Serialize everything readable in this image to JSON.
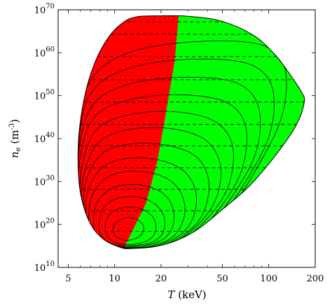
{
  "chart_data": {
    "type": "area",
    "xlabel": "T (keV)",
    "ylabel": "n_e (m^-3)",
    "x_scale": "log",
    "y_scale": "log",
    "xlim": [
      4.3,
      200
    ],
    "ylim": [
      10000000000.0,
      1e+70
    ],
    "x_ticks": [
      {
        "value": 5,
        "label": "5"
      },
      {
        "value": 10,
        "label": "10"
      },
      {
        "value": 20,
        "label": "20"
      },
      {
        "value": 50,
        "label": "50"
      },
      {
        "value": 100,
        "label": "100"
      },
      {
        "value": 200,
        "label": "200"
      }
    ],
    "y_ticks": [
      {
        "exp": 10,
        "label": "10",
        "base": "10"
      },
      {
        "exp": 20,
        "label": "20",
        "base": "10"
      },
      {
        "exp": 30,
        "label": "30",
        "base": "10"
      },
      {
        "exp": 40,
        "label": "40",
        "base": "10"
      },
      {
        "exp": 50,
        "label": "50",
        "base": "10"
      },
      {
        "exp": 60,
        "label": "60",
        "base": "10"
      },
      {
        "exp": 70,
        "label": "70",
        "base": "10"
      }
    ],
    "region_colors": {
      "red": "#ff0000",
      "green": "#00ff00"
    },
    "region_boundary": [
      [
        11.5,
        14.5
      ],
      [
        16,
        25
      ],
      [
        19,
        35
      ],
      [
        22,
        48
      ],
      [
        24.5,
        58
      ],
      [
        26,
        68.5
      ]
    ],
    "outline": [
      [
        11,
        14.6
      ],
      [
        8.5,
        16.5
      ],
      [
        7,
        20
      ],
      [
        6.1,
        26
      ],
      [
        5.8,
        33
      ],
      [
        5.9,
        42
      ],
      [
        6.5,
        51
      ],
      [
        7.6,
        58.5
      ],
      [
        9.3,
        64
      ],
      [
        11.5,
        67.2
      ],
      [
        14,
        68.4
      ],
      [
        19,
        68.6
      ],
      [
        30,
        68.5
      ],
      [
        50,
        67.3
      ],
      [
        80,
        64
      ],
      [
        110,
        59.5
      ],
      [
        140,
        54.5
      ],
      [
        162,
        51
      ],
      [
        170,
        48.5
      ],
      [
        150,
        43
      ],
      [
        110,
        36
      ],
      [
        75,
        29
      ],
      [
        50,
        23.5
      ],
      [
        35,
        19
      ],
      [
        25,
        16.2
      ],
      [
        18,
        14.8
      ],
      [
        13,
        14.4
      ],
      [
        11,
        14.6
      ]
    ],
    "contours": [
      {
        "level": 1,
        "outline": [
          [
            11.3,
            16.4
          ],
          [
            10,
            17.5
          ],
          [
            9.8,
            19.5
          ],
          [
            10.8,
            21
          ],
          [
            12.5,
            21.6
          ],
          [
            14.5,
            20.8
          ],
          [
            15.5,
            19.1
          ],
          [
            14.6,
            17.3
          ],
          [
            12.8,
            16.4
          ],
          [
            11.3,
            16.4
          ]
        ]
      },
      {
        "level": 2,
        "outline": [
          [
            10.6,
            15.6
          ],
          [
            9.1,
            17
          ],
          [
            8.7,
            20
          ],
          [
            9.6,
            22.8
          ],
          [
            11.8,
            24
          ],
          [
            15,
            23.6
          ],
          [
            17.8,
            21.6
          ],
          [
            18.5,
            18.8
          ],
          [
            16.8,
            16.5
          ],
          [
            13.5,
            15.4
          ],
          [
            10.6,
            15.6
          ]
        ]
      },
      {
        "level": 3,
        "outline": [
          [
            10.2,
            15.3
          ],
          [
            8.4,
            16.8
          ],
          [
            7.9,
            20
          ],
          [
            8.6,
            24.2
          ],
          [
            10.8,
            26.2
          ],
          [
            14.5,
            26.3
          ],
          [
            18.5,
            24.6
          ],
          [
            21,
            21.5
          ],
          [
            20.5,
            18
          ],
          [
            17.5,
            15.9
          ],
          [
            13.5,
            15.1
          ],
          [
            10.2,
            15.3
          ]
        ]
      },
      {
        "level": 4,
        "outline": [
          [
            9.8,
            15.1
          ],
          [
            7.9,
            16.8
          ],
          [
            7.3,
            20.5
          ],
          [
            7.8,
            25.5
          ],
          [
            9.9,
            28.6
          ],
          [
            14,
            29.3
          ],
          [
            19.5,
            27.8
          ],
          [
            23.5,
            24.5
          ],
          [
            24,
            20
          ],
          [
            20.5,
            16.5
          ],
          [
            14.5,
            14.9
          ],
          [
            9.8,
            15.1
          ]
        ]
      },
      {
        "level": 5,
        "outline": [
          [
            9.4,
            15
          ],
          [
            7.4,
            17
          ],
          [
            6.8,
            21
          ],
          [
            7.2,
            27
          ],
          [
            9.2,
            31.2
          ],
          [
            13.5,
            32.4
          ],
          [
            20.5,
            31.2
          ],
          [
            26.5,
            27.8
          ],
          [
            28.5,
            22.5
          ],
          [
            24,
            17.2
          ],
          [
            16,
            14.8
          ],
          [
            9.4,
            15
          ]
        ]
      },
      {
        "level": 6,
        "outline": [
          [
            9.1,
            14.9
          ],
          [
            7.1,
            17.1
          ],
          [
            6.5,
            21.5
          ],
          [
            6.8,
            28.5
          ],
          [
            8.7,
            33.8
          ],
          [
            13.2,
            35.5
          ],
          [
            21.5,
            34.6
          ],
          [
            30,
            31.4
          ],
          [
            34,
            25.5
          ],
          [
            29,
            18.8
          ],
          [
            18,
            14.9
          ],
          [
            9.1,
            14.9
          ]
        ]
      },
      {
        "level": 7,
        "outline": [
          [
            8.9,
            14.8
          ],
          [
            6.8,
            17.3
          ],
          [
            6.3,
            22
          ],
          [
            6.5,
            30
          ],
          [
            8.3,
            36.5
          ],
          [
            13,
            38.8
          ],
          [
            23,
            38.3
          ],
          [
            35,
            35.3
          ],
          [
            41,
            28.8
          ],
          [
            34.5,
            20.5
          ],
          [
            20,
            15.1
          ],
          [
            8.9,
            14.8
          ]
        ]
      },
      {
        "level": 8,
        "outline": [
          [
            8.7,
            14.8
          ],
          [
            6.6,
            17.5
          ],
          [
            6.1,
            22.5
          ],
          [
            6.3,
            31.5
          ],
          [
            7.9,
            39.2
          ],
          [
            12.8,
            42.2
          ],
          [
            24.5,
            42.2
          ],
          [
            40,
            39.3
          ],
          [
            49,
            32.5
          ],
          [
            41,
            23
          ],
          [
            22,
            15.2
          ],
          [
            8.7,
            14.8
          ]
        ]
      },
      {
        "level": 9,
        "outline": [
          [
            8.5,
            14.7
          ],
          [
            6.4,
            17.6
          ],
          [
            6,
            23
          ],
          [
            6.1,
            33
          ],
          [
            7.6,
            42
          ],
          [
            12.6,
            45.6
          ],
          [
            26,
            46.2
          ],
          [
            47,
            43.5
          ],
          [
            59,
            36.5
          ],
          [
            49,
            25.5
          ],
          [
            24,
            15.4
          ],
          [
            8.5,
            14.7
          ]
        ]
      },
      {
        "level": 10,
        "outline": [
          [
            8.3,
            14.7
          ],
          [
            6.3,
            17.8
          ],
          [
            5.9,
            23.5
          ],
          [
            5.9,
            34.5
          ],
          [
            7.3,
            44.8
          ],
          [
            12.4,
            49
          ],
          [
            28,
            50.2
          ],
          [
            56,
            48
          ],
          [
            72,
            40.8
          ],
          [
            59,
            28.5
          ],
          [
            27,
            15.6
          ],
          [
            8.3,
            14.7
          ]
        ]
      },
      {
        "level": 11,
        "outline": [
          [
            8.2,
            14.7
          ],
          [
            6.2,
            18
          ],
          [
            5.8,
            24
          ],
          [
            5.8,
            36
          ],
          [
            7.1,
            47.5
          ],
          [
            12.2,
            52.6
          ],
          [
            30,
            54.3
          ],
          [
            66,
            52.5
          ],
          [
            88,
            45
          ],
          [
            72,
            32
          ],
          [
            30,
            16
          ],
          [
            8.2,
            14.7
          ]
        ]
      },
      {
        "level": 12,
        "outline": [
          [
            8.1,
            14.6
          ],
          [
            6.1,
            18.1
          ],
          [
            5.8,
            24.5
          ],
          [
            5.8,
            37.5
          ],
          [
            6.9,
            50.2
          ],
          [
            12,
            56.2
          ],
          [
            32,
            58.5
          ],
          [
            79,
            57
          ],
          [
            108,
            49.5
          ],
          [
            87,
            35.5
          ],
          [
            33,
            16.3
          ],
          [
            8.1,
            14.6
          ]
        ]
      },
      {
        "level": 13,
        "outline": [
          [
            8,
            14.6
          ],
          [
            6,
            18.2
          ],
          [
            5.7,
            25
          ],
          [
            5.7,
            39
          ],
          [
            6.8,
            52.8
          ],
          [
            11.9,
            59.8
          ],
          [
            34,
            62.6
          ],
          [
            95,
            61.5
          ],
          [
            130,
            54
          ],
          [
            103,
            39
          ],
          [
            36,
            16.6
          ],
          [
            8,
            14.6
          ]
        ]
      }
    ],
    "dashed_lines": [
      {
        "y": 67.2,
        "x_range": [
          12,
          58
        ]
      },
      {
        "y": 64.3,
        "x_range": [
          9.5,
          86
        ]
      },
      {
        "y": 59.1,
        "x_range": [
          7.7,
          113
        ]
      },
      {
        "y": 53.7,
        "x_range": [
          6.5,
          153
        ]
      },
      {
        "y": 48.5,
        "x_range": [
          6.1,
          170
        ]
      },
      {
        "y": 43.3,
        "x_range": [
          5.9,
          153
        ]
      },
      {
        "y": 38.3,
        "x_range": [
          5.8,
          125
        ]
      },
      {
        "y": 33.2,
        "x_range": [
          5.9,
          95
        ]
      },
      {
        "y": 28.2,
        "x_range": [
          6.2,
          70
        ]
      },
      {
        "y": 23.2,
        "x_range": [
          6.9,
          47
        ]
      },
      {
        "y": 18.4,
        "x_range": [
          8.5,
          30
        ]
      }
    ]
  }
}
